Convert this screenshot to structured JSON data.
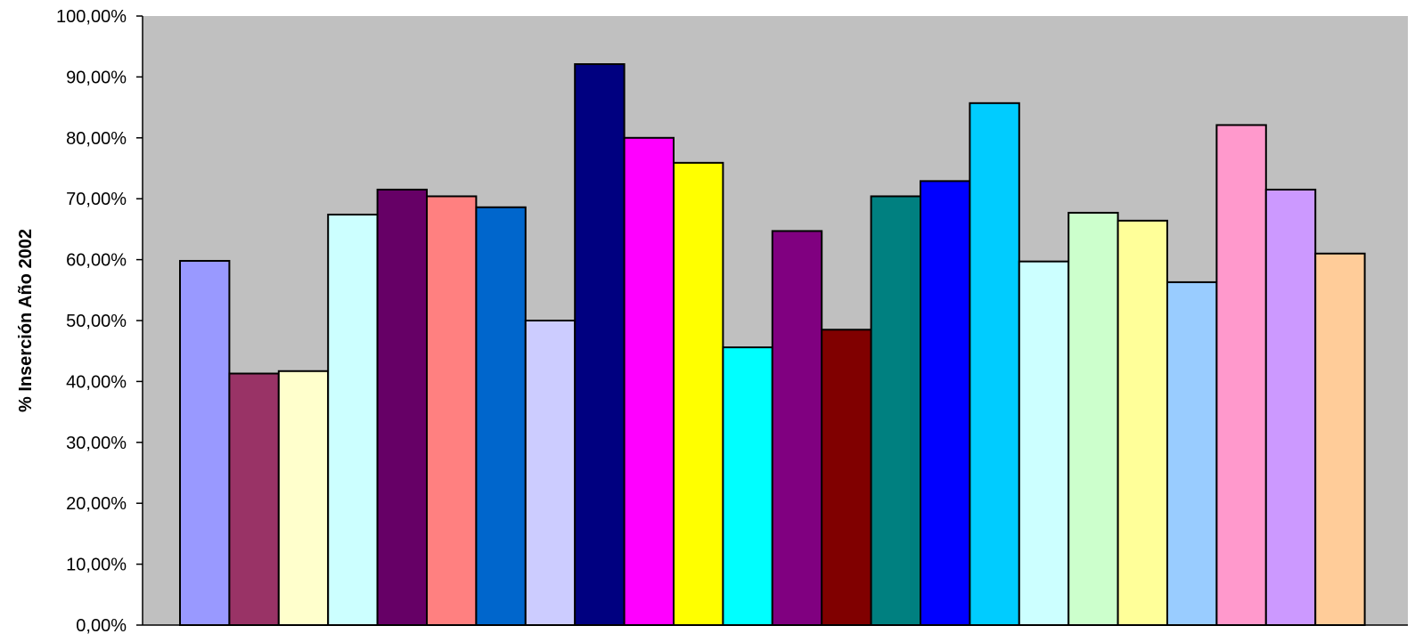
{
  "chart_data": {
    "type": "bar",
    "ylabel": "% Inserción Año 2002",
    "xlabel": "",
    "ylim": [
      0,
      100
    ],
    "yticks": [
      0,
      10,
      20,
      30,
      40,
      50,
      60,
      70,
      80,
      90,
      100
    ],
    "ytick_labels": [
      "0,00%",
      "10,00%",
      "20,00%",
      "30,00%",
      "40,00%",
      "50,00%",
      "60,00%",
      "70,00%",
      "80,00%",
      "90,00%",
      "100,00%"
    ],
    "grid": false,
    "plot_background": "#C0C0C0",
    "values": [
      59.8,
      41.3,
      41.7,
      67.4,
      71.5,
      70.4,
      68.6,
      50.0,
      92.1,
      80.0,
      75.9,
      45.6,
      64.7,
      48.5,
      70.4,
      72.9,
      85.7,
      59.7,
      67.7,
      66.4,
      56.3,
      82.1,
      71.5,
      61.0
    ],
    "colors": [
      "#9999FF",
      "#993366",
      "#FFFFCC",
      "#CCFFFF",
      "#660066",
      "#FF8080",
      "#0066CC",
      "#CCCCFF",
      "#000080",
      "#FF00FF",
      "#FFFF00",
      "#00FFFF",
      "#800080",
      "#800000",
      "#008080",
      "#0000FF",
      "#00CCFF",
      "#CCFFFF",
      "#CCFFCC",
      "#FFFF99",
      "#99CCFF",
      "#FF99CC",
      "#CC99FF",
      "#FFCC99"
    ]
  }
}
